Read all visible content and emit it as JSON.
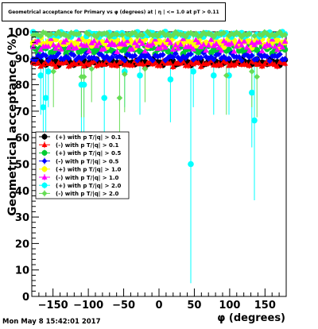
{
  "chart_data": {
    "type": "scatter",
    "title": "Geometrical acceptance for Primary vs φ (degrees) at | η | <= 1.0 at pT > 0.11",
    "xlabel": "φ (degrees)",
    "ylabel": "Geometrical acceptance (%)",
    "xlim": [
      -180,
      180
    ],
    "ylim": [
      0,
      100
    ],
    "x_ticks": [
      -150,
      -100,
      -50,
      0,
      50,
      100,
      150
    ],
    "x_tick_labels": [
      "−150",
      "−100",
      "−50",
      "0",
      "50",
      "100",
      "150"
    ],
    "y_ticks": [
      0,
      10,
      20,
      30,
      40,
      50,
      60,
      70,
      80,
      90,
      100
    ],
    "y_tick_labels": [
      "0",
      "10",
      "20",
      "30",
      "40",
      "50",
      "60",
      "70",
      "80",
      "90",
      "100"
    ],
    "grid": false,
    "legend_position": "left-middle",
    "series": [
      {
        "name": "(+) with p T/|q| > 0.1",
        "color": "#000000",
        "marker": "circle",
        "level": 88.5,
        "spread": 1.2,
        "dips": []
      },
      {
        "name": "(-) with p T/|q| > 0.1",
        "color": "#ff0000",
        "marker": "triangle",
        "level": 88.0,
        "spread": 1.2,
        "dips": []
      },
      {
        "name": "(+) with p T/|q| > 0.5",
        "color": "#00cc33",
        "marker": "circle",
        "level": 93.5,
        "spread": 2.0,
        "dips": []
      },
      {
        "name": "(-) with p T/|q| > 0.5",
        "color": "#0000ff",
        "marker": "diamond",
        "level": 90.5,
        "spread": 1.5,
        "dips": []
      },
      {
        "name": "(+) with p T/|q| > 1.0",
        "color": "#ffff00",
        "marker": "circle",
        "level": 96.0,
        "spread": 2.0,
        "dips": []
      },
      {
        "name": "(-) with p T/|q| > 1.0",
        "color": "#ff00ff",
        "marker": "triangle",
        "level": 95.0,
        "spread": 2.5,
        "dips": []
      },
      {
        "name": "(+) with p T/|q| > 2.0",
        "color": "#00ffff",
        "marker": "circle",
        "level": 99.0,
        "spread": 1.0,
        "dips": [
          [
            -167,
            83.5
          ],
          [
            -164,
            71.5
          ],
          [
            -160,
            75
          ],
          [
            -155,
            85
          ],
          [
            -108,
            80
          ],
          [
            -78,
            75
          ],
          [
            -50,
            85
          ],
          [
            -28,
            83.5
          ],
          [
            15,
            82
          ],
          [
            45,
            50
          ],
          [
            47,
            85
          ],
          [
            78,
            83.5
          ],
          [
            100,
            83.5
          ],
          [
            130,
            85
          ],
          [
            133,
            77
          ],
          [
            135,
            66.5
          ]
        ]
      },
      {
        "name": "(-) with p T/|q| > 2.0",
        "color": "#66dd55",
        "marker": "diamond",
        "level": 99.0,
        "spread": 1.0,
        "dips": [
          [
            -150,
            85
          ],
          [
            -108,
            83
          ],
          [
            -95,
            86
          ],
          [
            -55,
            75
          ],
          [
            -50,
            84
          ],
          [
            -20,
            86
          ],
          [
            95,
            83.5
          ],
          [
            130,
            85
          ],
          [
            137,
            83
          ]
        ]
      }
    ]
  },
  "timestamp": "Mon May  8 15:42:01 2017"
}
